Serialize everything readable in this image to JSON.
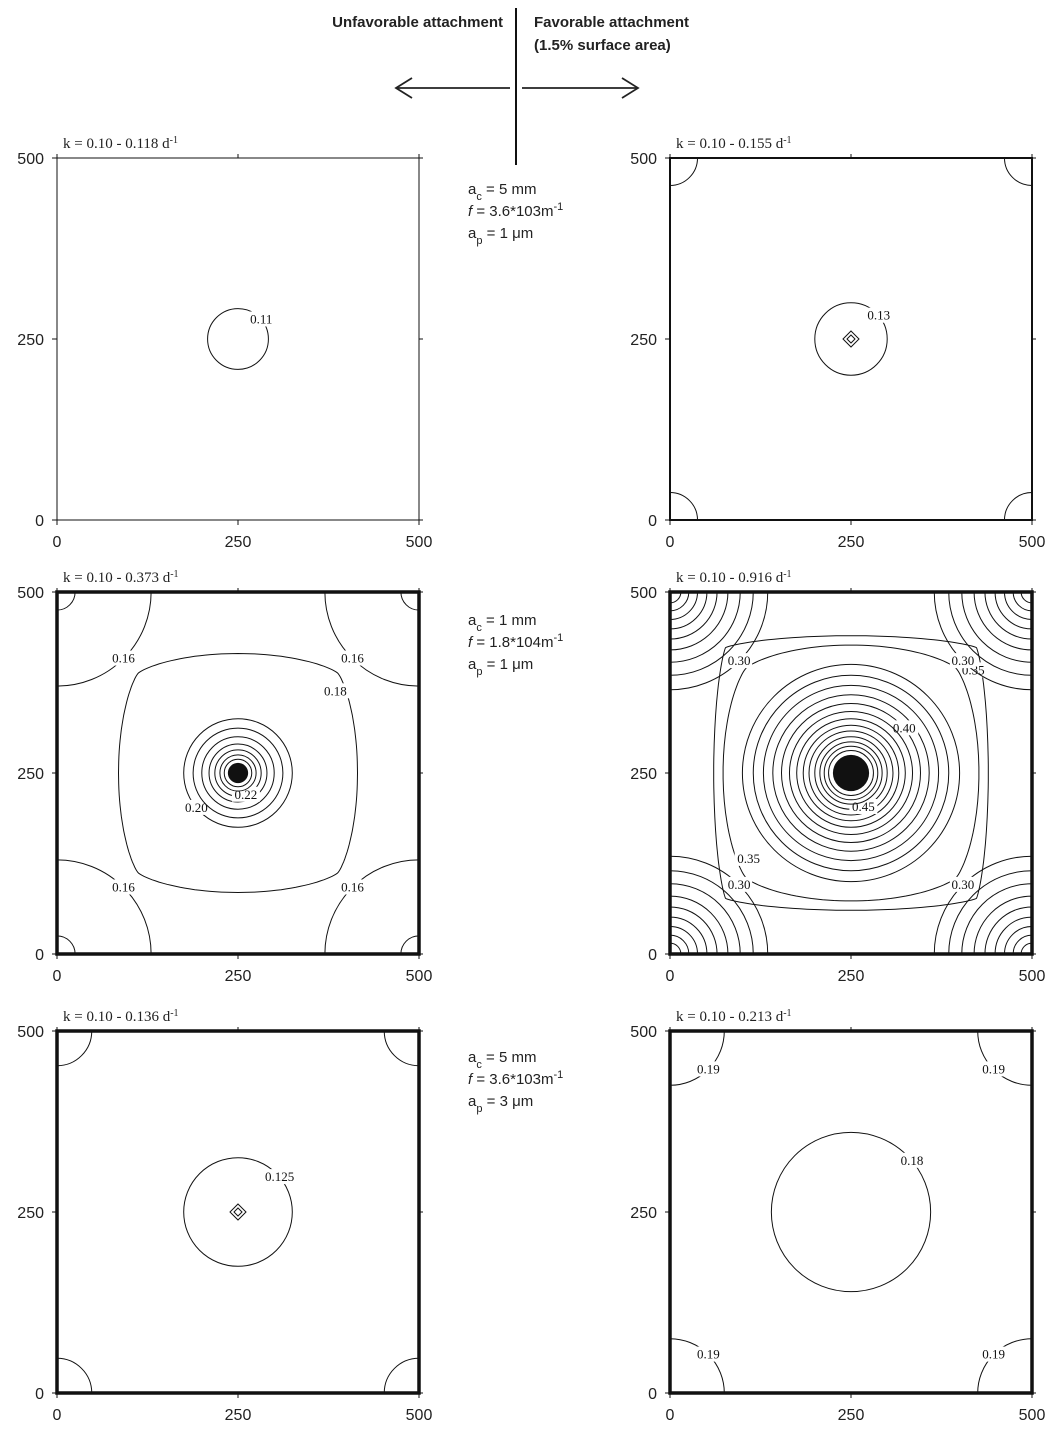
{
  "header": {
    "left_label": "Unfavorable attachment",
    "right_label_line1": "Favorable attachment",
    "right_label_line2": "(1.5% surface area)"
  },
  "rows": [
    {
      "param_lines": [
        "a_c = 5 mm",
        "f = 3.6*103m-1",
        "a_p = 1 μm"
      ]
    },
    {
      "param_lines": [
        "a_c = 1 mm",
        "f = 1.8*104m-1",
        "a_p = 1 μm"
      ]
    },
    {
      "param_lines": [
        "a_c = 5 mm",
        "f = 3.6*103m-1",
        "a_p = 3 μm"
      ]
    }
  ],
  "chart_data": [
    {
      "type": "contour",
      "panel": "unfavorable-row1",
      "title": "k = 0.10 - 0.118 d-1",
      "x_ticks": [
        0,
        250,
        500
      ],
      "y_ticks": [
        0,
        250,
        500
      ],
      "xlim": [
        0,
        500
      ],
      "ylim": [
        0,
        500
      ],
      "center": [
        250,
        250
      ],
      "contours": [
        {
          "level": "0.11",
          "shape": "circle",
          "radius": 42
        }
      ],
      "corner_contours": [],
      "edge_stroke": "thin"
    },
    {
      "type": "contour",
      "panel": "favorable-row1",
      "title": "k = 0.10 - 0.155 d-1",
      "x_ticks": [
        0,
        250,
        500
      ],
      "y_ticks": [
        0,
        250,
        500
      ],
      "xlim": [
        0,
        500
      ],
      "ylim": [
        0,
        500
      ],
      "center": [
        250,
        250
      ],
      "contours": [
        {
          "level": "0.13",
          "shape": "circle",
          "radius": 50
        }
      ],
      "center_marks": [
        {
          "radius": 8
        },
        {
          "radius": 4
        }
      ],
      "corner_contours": [
        {
          "radius": 38
        }
      ],
      "edge_stroke": "medium"
    },
    {
      "type": "contour",
      "panel": "unfavorable-row2",
      "title": "k = 0.10 - 0.373 d-1",
      "x_ticks": [
        0,
        250,
        500
      ],
      "y_ticks": [
        0,
        250,
        500
      ],
      "xlim": [
        0,
        500
      ],
      "ylim": [
        0,
        500
      ],
      "center": [
        250,
        250
      ],
      "contours": [
        {
          "level": "0.18",
          "shape": "superellipse",
          "radius": 195,
          "exponent": 1.35
        },
        {
          "level": "0.20",
          "shape": "circle",
          "radius": 75
        },
        {
          "level": "",
          "shape": "circle",
          "radius": 62
        },
        {
          "level": "",
          "shape": "circle",
          "radius": 50
        },
        {
          "level": "",
          "shape": "circle",
          "radius": 40
        },
        {
          "level": "0.22",
          "shape": "circle",
          "radius": 32
        },
        {
          "level": "",
          "shape": "circle",
          "radius": 25
        },
        {
          "level": "",
          "shape": "circle",
          "radius": 19
        }
      ],
      "center_fill_radius": 14,
      "corner_contours": [
        {
          "level": "0.16",
          "radius": 130
        },
        {
          "level": "",
          "radius": 25
        }
      ],
      "edge_stroke": "thick"
    },
    {
      "type": "contour",
      "panel": "favorable-row2",
      "title": "k = 0.10 - 0.916 d-1",
      "x_ticks": [
        0,
        250,
        500
      ],
      "y_ticks": [
        0,
        250,
        500
      ],
      "xlim": [
        0,
        500
      ],
      "ylim": [
        0,
        500
      ],
      "center": [
        250,
        250
      ],
      "contours": [
        {
          "level": "0.35",
          "shape": "superellipse",
          "radius": 245,
          "exponent": 1.15
        },
        {
          "level": "0.35",
          "shape": "superellipse",
          "radius": 205,
          "exponent": 1.4
        },
        {
          "level": "",
          "shape": "circle",
          "radius": 150
        },
        {
          "level": "",
          "shape": "circle",
          "radius": 135
        },
        {
          "level": "",
          "shape": "circle",
          "radius": 121
        },
        {
          "level": "",
          "shape": "circle",
          "radius": 108
        },
        {
          "level": "0.40",
          "shape": "circle",
          "radius": 96
        },
        {
          "level": "",
          "shape": "circle",
          "radius": 85
        },
        {
          "level": "",
          "shape": "circle",
          "radius": 75
        },
        {
          "level": "",
          "shape": "circle",
          "radius": 66
        },
        {
          "level": "",
          "shape": "circle",
          "radius": 58
        },
        {
          "level": "0.45",
          "shape": "circle",
          "radius": 50
        },
        {
          "level": "",
          "shape": "circle",
          "radius": 43
        },
        {
          "level": "",
          "shape": "circle",
          "radius": 37
        },
        {
          "level": "",
          "shape": "circle",
          "radius": 31
        }
      ],
      "center_fill_radius": 25,
      "corner_contours": [
        {
          "level": "0.30",
          "radius": 135
        },
        {
          "level": "",
          "radius": 115
        },
        {
          "level": "",
          "radius": 97
        },
        {
          "level": "",
          "radius": 80
        },
        {
          "level": "",
          "radius": 65
        },
        {
          "level": "",
          "radius": 51
        },
        {
          "level": "",
          "radius": 38
        },
        {
          "level": "",
          "radius": 26
        },
        {
          "level": "",
          "radius": 15
        }
      ],
      "edge_stroke": "thick"
    },
    {
      "type": "contour",
      "panel": "unfavorable-row3",
      "title": "k = 0.10 - 0.136 d-1",
      "x_ticks": [
        0,
        250,
        500
      ],
      "y_ticks": [
        0,
        250,
        500
      ],
      "xlim": [
        0,
        500
      ],
      "ylim": [
        0,
        500
      ],
      "center": [
        250,
        250
      ],
      "contours": [
        {
          "level": "0.125",
          "shape": "circle",
          "radius": 75
        }
      ],
      "center_marks": [
        {
          "radius": 8
        },
        {
          "radius": 4
        }
      ],
      "corner_contours": [
        {
          "radius": 48
        }
      ],
      "edge_stroke": "thick"
    },
    {
      "type": "contour",
      "panel": "favorable-row3",
      "title": "k = 0.10 - 0.213 d-1",
      "x_ticks": [
        0,
        250,
        500
      ],
      "y_ticks": [
        0,
        250,
        500
      ],
      "xlim": [
        0,
        500
      ],
      "ylim": [
        0,
        500
      ],
      "center": [
        250,
        250
      ],
      "contours": [
        {
          "level": "0.18",
          "shape": "circle",
          "radius": 110
        }
      ],
      "corner_contours": [
        {
          "level": "0.19",
          "radius": 75
        }
      ],
      "edge_stroke": "thick"
    }
  ]
}
